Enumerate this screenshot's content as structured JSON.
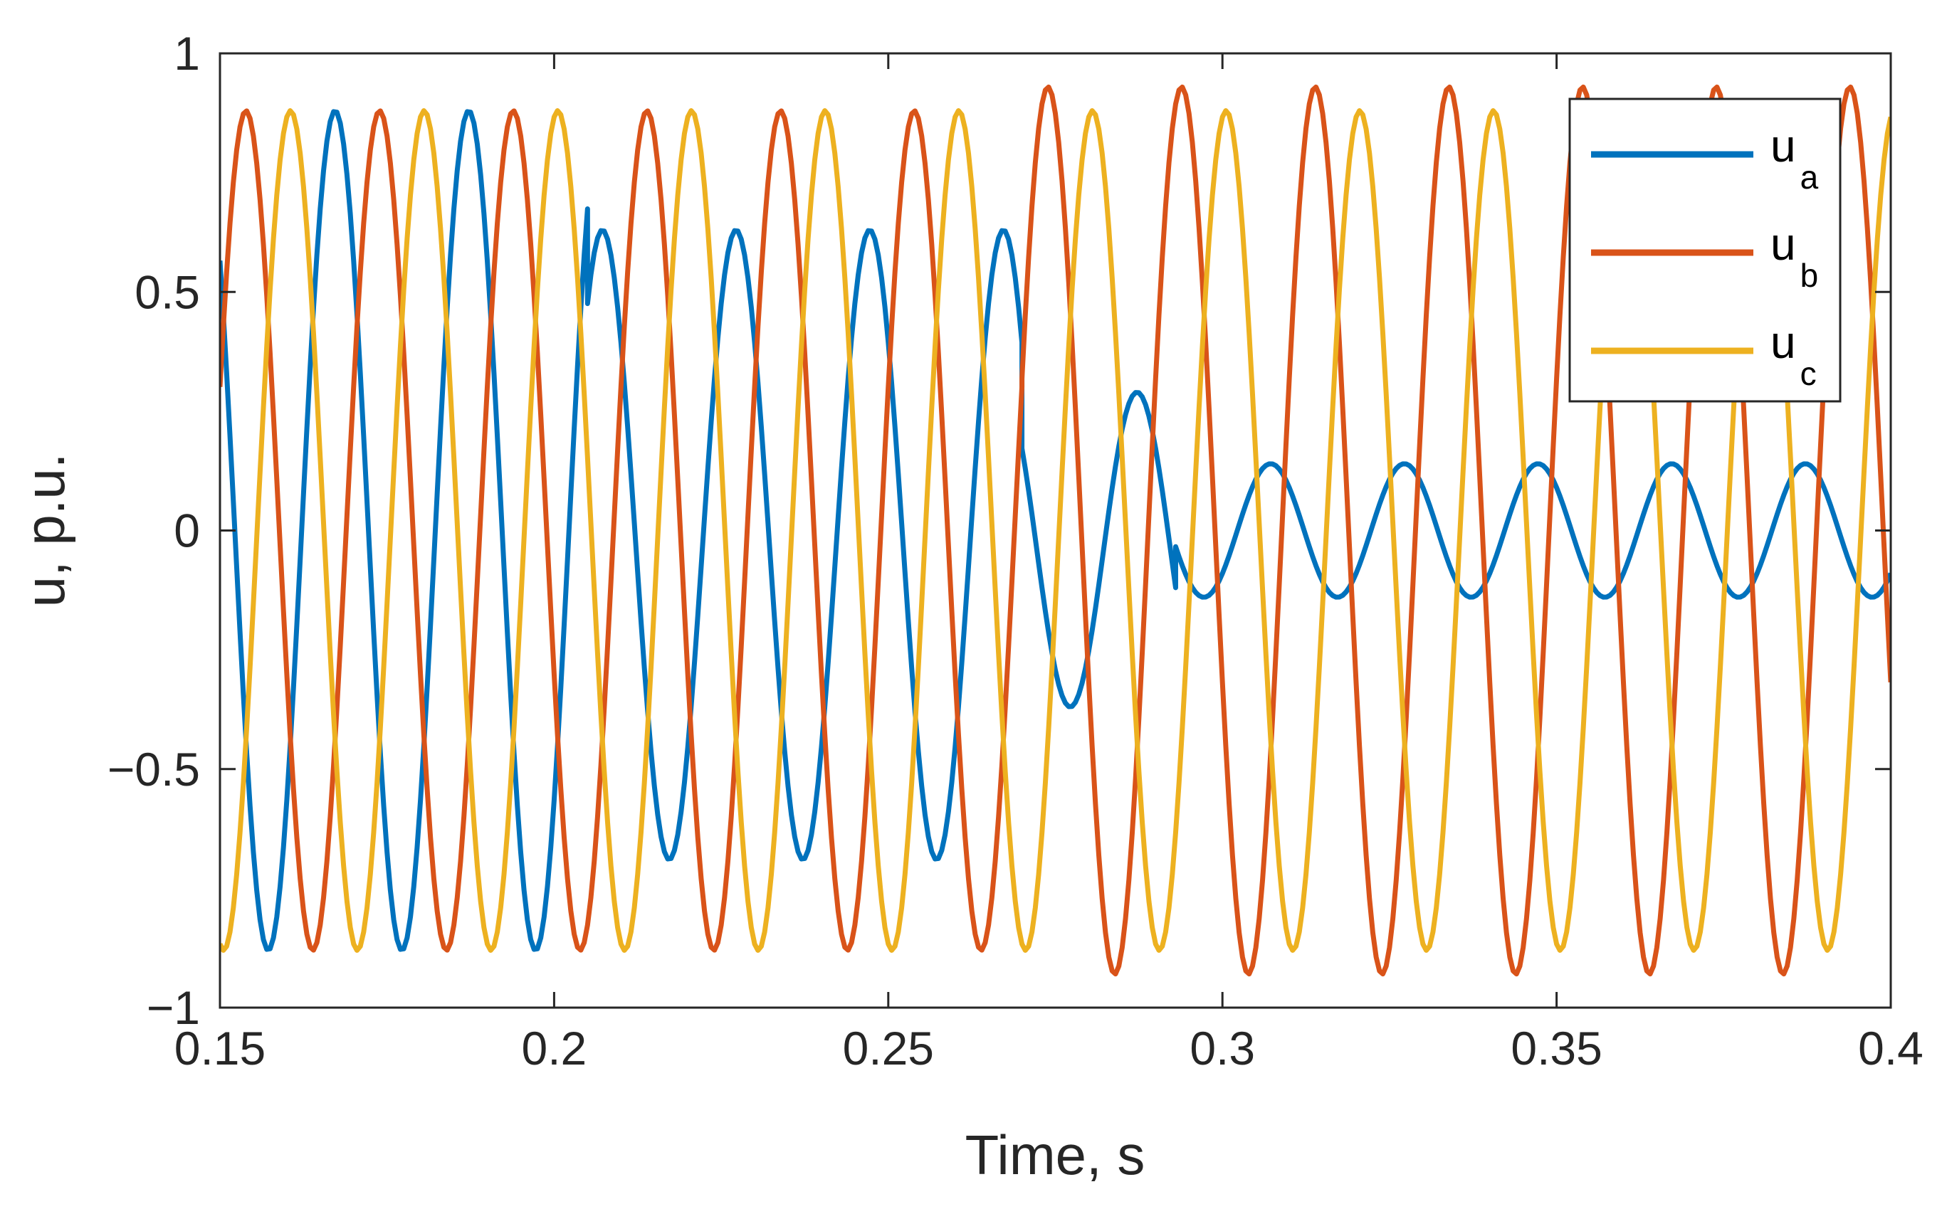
{
  "chart_data": {
    "type": "line",
    "title": "",
    "xlabel": "Time, s",
    "ylabel": "u, p.u.",
    "xlim": [
      0.15,
      0.4
    ],
    "ylim": [
      -1,
      1
    ],
    "xticks": [
      0.15,
      0.2,
      0.25,
      0.3,
      0.35,
      0.4
    ],
    "xtick_labels": [
      "0.15",
      "0.2",
      "0.25",
      "0.3",
      "0.35",
      "0.4"
    ],
    "yticks": [
      -1,
      -0.5,
      0,
      0.5,
      1
    ],
    "ytick_labels": [
      "−1",
      "−0.5",
      "0",
      "0.5",
      "1"
    ],
    "grid": false,
    "legend_position": "top-right",
    "sample_step": 0.0005,
    "series": [
      {
        "name": "u_a",
        "legend_main": "u",
        "legend_sub": "a",
        "color": "#0072BD",
        "segments": [
          {
            "t_start": 0.15,
            "t_end": 0.205,
            "amplitude": 0.88,
            "offset": 0,
            "phase_deg": -40
          },
          {
            "t_start": 0.205,
            "t_end": 0.27,
            "amplitude": 0.66,
            "offset": -0.03,
            "phase_deg": -40
          },
          {
            "t_start": 0.27,
            "t_end": 0.293,
            "amplitude": 0.33,
            "offset": -0.04,
            "phase_deg": -40
          },
          {
            "t_start": 0.293,
            "t_end": 0.4,
            "amplitude": 0.14,
            "offset": 0,
            "phase_deg": -40
          }
        ]
      },
      {
        "name": "u_b",
        "legend_main": "u",
        "legend_sub": "b",
        "color": "#D95319",
        "segments": [
          {
            "t_start": 0.15,
            "t_end": 0.27,
            "amplitude": 0.88,
            "offset": 0,
            "phase_deg": -160
          },
          {
            "t_start": 0.27,
            "t_end": 0.4,
            "amplitude": 0.93,
            "offset": 0,
            "phase_deg": -160
          }
        ]
      },
      {
        "name": "u_c",
        "legend_main": "u",
        "legend_sub": "c",
        "color": "#EDB120",
        "segments": [
          {
            "t_start": 0.15,
            "t_end": 0.4,
            "amplitude": 0.88,
            "offset": 0,
            "phase_deg": 80
          }
        ]
      }
    ]
  }
}
